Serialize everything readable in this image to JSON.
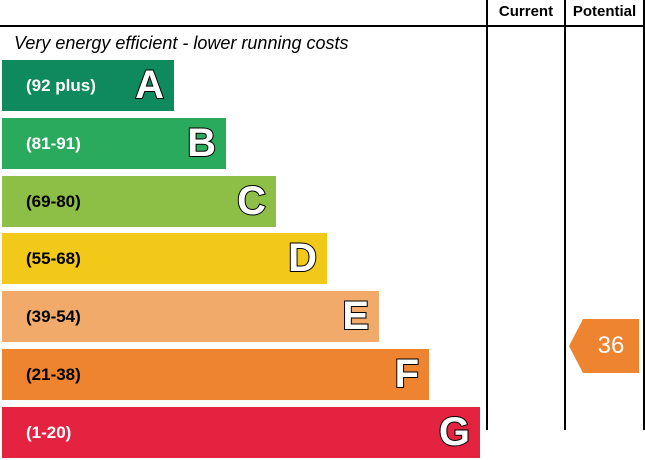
{
  "header": {
    "current_label": "Current",
    "potential_label": "Potential",
    "top_note": "Very energy efficient - lower running costs"
  },
  "chart_data": {
    "type": "bar",
    "title": "",
    "categories": [
      "A",
      "B",
      "C",
      "D",
      "E",
      "F",
      "G"
    ],
    "ranges": [
      "(92 plus)",
      "(81-91)",
      "(69-80)",
      "(55-68)",
      "(39-54)",
      "(21-38)",
      "(1-20)"
    ],
    "colors": [
      "#0f8a5f",
      "#2aaa5c",
      "#8dbe45",
      "#f2c918",
      "#f2aa6a",
      "#ee8330",
      "#e3233f"
    ],
    "current": null,
    "potential": {
      "value": 36,
      "band": "F",
      "color": "#ee8330"
    }
  }
}
